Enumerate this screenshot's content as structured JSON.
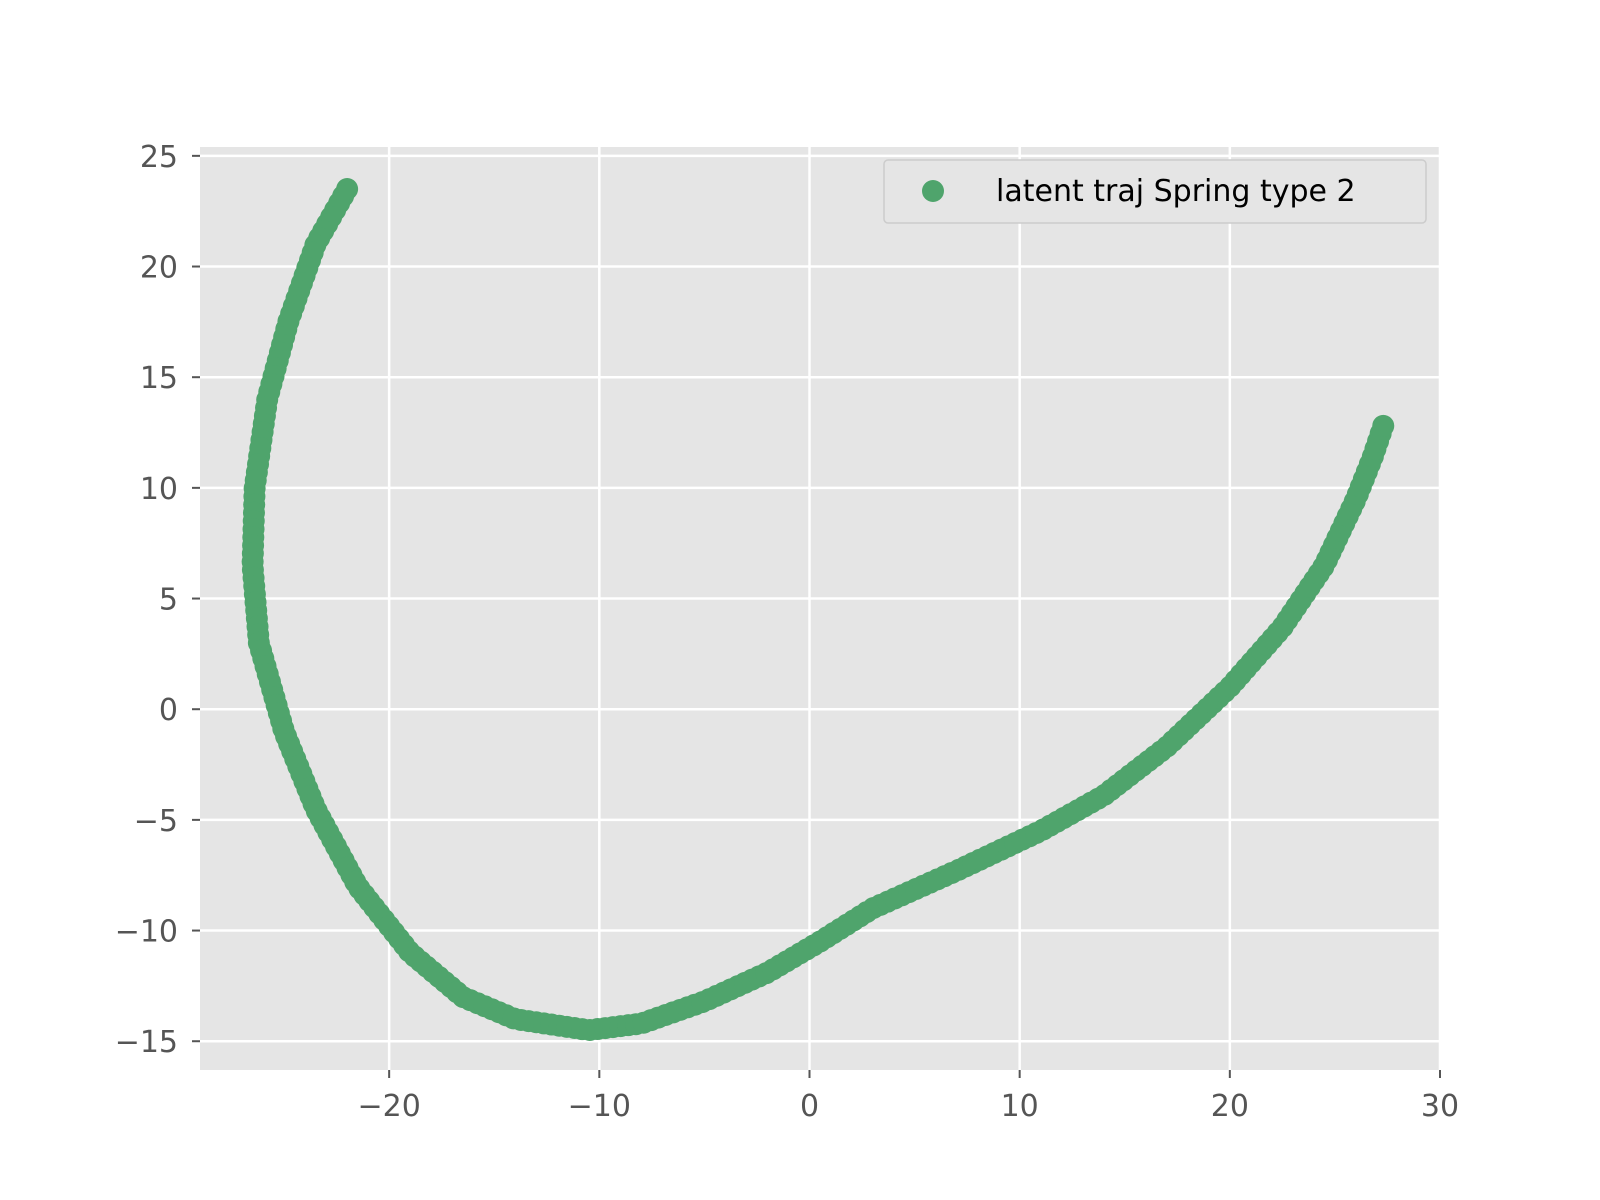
{
  "chart_data": {
    "type": "scatter",
    "title": "",
    "xlabel": "",
    "ylabel": "",
    "xlim": [
      -29,
      30
    ],
    "ylim": [
      -16.3,
      25.4
    ],
    "xticks": [
      -20,
      -10,
      0,
      10,
      20,
      30
    ],
    "yticks": [
      -15,
      -10,
      -5,
      0,
      5,
      10,
      15,
      20,
      25
    ],
    "xtick_labels": [
      "−20",
      "−10",
      "0",
      "10",
      "20",
      "30"
    ],
    "ytick_labels": [
      "−15",
      "−10",
      "−5",
      "0",
      "5",
      "10",
      "15",
      "20",
      "25"
    ],
    "grid": true,
    "legend_position": "upper-right",
    "colors": {
      "background": "#e5e5e5",
      "grid": "#ffffff",
      "marker": "#4fa46c"
    },
    "series": [
      {
        "name": "latent traj Spring type 2",
        "color": "#4fa46c",
        "anchors": [
          [
            -22.0,
            23.5
          ],
          [
            -23.5,
            21.0
          ],
          [
            -24.8,
            17.5
          ],
          [
            -25.8,
            14.0
          ],
          [
            -26.4,
            10.0
          ],
          [
            -26.5,
            6.5
          ],
          [
            -26.2,
            3.0
          ],
          [
            -25.0,
            -1.0
          ],
          [
            -23.5,
            -4.5
          ],
          [
            -21.5,
            -8.0
          ],
          [
            -19.0,
            -11.0
          ],
          [
            -16.5,
            -13.0
          ],
          [
            -14.0,
            -14.0
          ],
          [
            -10.5,
            -14.5
          ],
          [
            -8.0,
            -14.2
          ],
          [
            -5.0,
            -13.2
          ],
          [
            -2.0,
            -11.9
          ],
          [
            0.5,
            -10.5
          ],
          [
            3.0,
            -9.0
          ],
          [
            7.0,
            -7.3
          ],
          [
            11.0,
            -5.5
          ],
          [
            14.0,
            -3.9
          ],
          [
            17.0,
            -1.7
          ],
          [
            20.0,
            1.0
          ],
          [
            22.5,
            3.7
          ],
          [
            24.5,
            6.5
          ],
          [
            26.0,
            9.5
          ],
          [
            26.8,
            11.4
          ],
          [
            27.3,
            12.8
          ]
        ]
      }
    ]
  }
}
